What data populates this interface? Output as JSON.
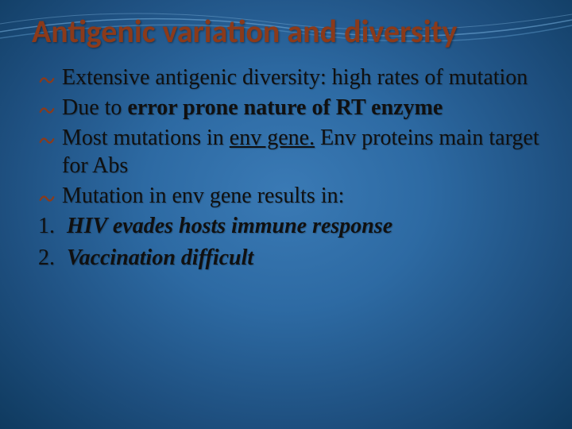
{
  "colors": {
    "title_color": "#8b3a1a",
    "bullet_color": "#8b3a1a",
    "text_color": "#101010",
    "bg_center": "#3a7ab5",
    "bg_edge": "#0f3a5f",
    "wave_stroke": "#6fa8d6"
  },
  "title": "Antigenic variation and diversity",
  "title_fontsize": 40,
  "body_fontsize": 28,
  "bullets": [
    {
      "parts": [
        {
          "text": "Extensive antigenic diversity: high rates of mutation"
        }
      ]
    },
    {
      "parts": [
        {
          "text": "Due to "
        },
        {
          "text": "error prone nature of RT enzyme",
          "bold": true
        }
      ]
    },
    {
      "parts": [
        {
          "text": "Most mutations in "
        },
        {
          "text": "env gene.",
          "underline": true
        },
        {
          "text": " Env proteins main target for Abs"
        }
      ]
    },
    {
      "parts": [
        {
          "text": "Mutation in env gene results in:"
        }
      ]
    }
  ],
  "numbered": [
    {
      "num": "1.",
      "text": "HIV evades hosts immune response"
    },
    {
      "num": "2.",
      "text": "Vaccination difficult"
    }
  ]
}
